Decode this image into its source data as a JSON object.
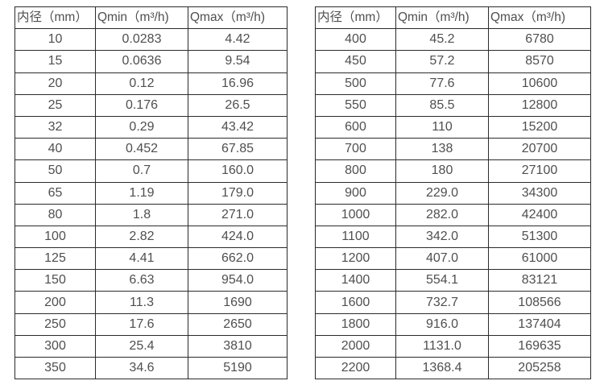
{
  "page": {
    "background_color": "#ffffff",
    "border_color": "#2b2b2b",
    "text_color": "#4f4f4f"
  },
  "tables": [
    {
      "name": "flow-table-small-diameters",
      "headers": [
        "内径（mm）",
        "Qmin（m³/h)",
        "Qmax（m³/h)"
      ],
      "rows": [
        [
          "10",
          "0.0283",
          "4.42"
        ],
        [
          "15",
          "0.0636",
          "9.54"
        ],
        [
          "20",
          "0.12",
          "16.96"
        ],
        [
          "25",
          "0.176",
          "26.5"
        ],
        [
          "32",
          "0.29",
          "43.42"
        ],
        [
          "40",
          "0.452",
          "67.85"
        ],
        [
          "50",
          "0.7",
          "160.0"
        ],
        [
          "65",
          "1.19",
          "179.0"
        ],
        [
          "80",
          "1.8",
          "271.0"
        ],
        [
          "100",
          "2.82",
          "424.0"
        ],
        [
          "125",
          "4.41",
          "662.0"
        ],
        [
          "150",
          "6.63",
          "954.0"
        ],
        [
          "200",
          "11.3",
          "1690"
        ],
        [
          "250",
          "17.6",
          "2650"
        ],
        [
          "300",
          "25.4",
          "3810"
        ],
        [
          "350",
          "34.6",
          "5190"
        ]
      ]
    },
    {
      "name": "flow-table-large-diameters",
      "headers": [
        "内径（mm）",
        "Qmin（m³/h)",
        "Qmax（m³/h)"
      ],
      "rows": [
        [
          "400",
          "45.2",
          "6780"
        ],
        [
          "450",
          "57.2",
          "8570"
        ],
        [
          "500",
          "77.6",
          "10600"
        ],
        [
          "550",
          "85.5",
          "12800"
        ],
        [
          "600",
          "110",
          "15200"
        ],
        [
          "700",
          "138",
          "20700"
        ],
        [
          "800",
          "180",
          "27100"
        ],
        [
          "900",
          "229.0",
          "34300"
        ],
        [
          "1000",
          "282.0",
          "42400"
        ],
        [
          "1100",
          "342.0",
          "51300"
        ],
        [
          "1200",
          "407.0",
          "61000"
        ],
        [
          "1400",
          "554.1",
          "83121"
        ],
        [
          "1600",
          "732.7",
          "108566"
        ],
        [
          "1800",
          "916.0",
          "137404"
        ],
        [
          "2000",
          "1131.0",
          "169635"
        ],
        [
          "2200",
          "1368.4",
          "205258"
        ]
      ]
    }
  ]
}
